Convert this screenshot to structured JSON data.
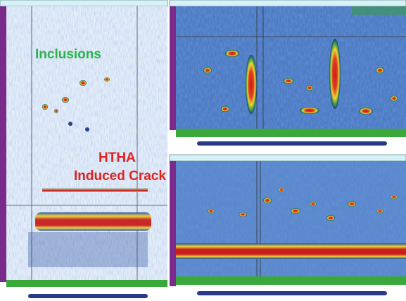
{
  "annotations": {
    "inclusions": "Inclusions",
    "htha": "HTHA",
    "crack": "Induced Crack"
  }
}
